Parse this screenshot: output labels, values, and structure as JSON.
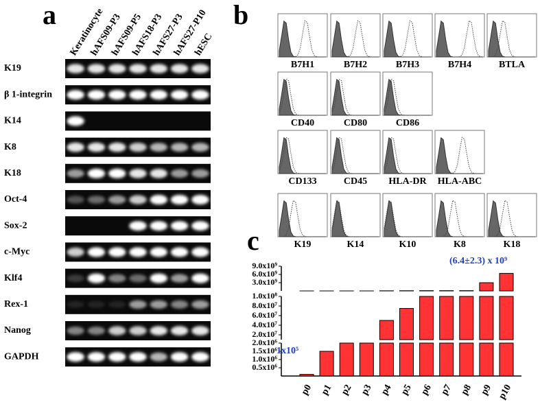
{
  "panel_a": {
    "letter": "a",
    "lanes": [
      "Keratinocyte",
      "hAFS09-P3",
      "hAFS09-P5",
      "hAFS18-P3",
      "hAFS27-P3",
      "hAFS27-P10",
      "hESC"
    ],
    "genes": [
      "K19",
      "β 1-integrin",
      "K14",
      "K8",
      "K18",
      "Oct-4",
      "Sox-2",
      "c-Myc",
      "Klf4",
      "Rex-1",
      "Nanog",
      "GAPDH"
    ]
  },
  "panel_b": {
    "letter": "b",
    "rows": [
      [
        "B7H1",
        "B7H2",
        "B7H3",
        "B7H4",
        "BTLA"
      ],
      [
        "CD40",
        "CD80",
        "CD86"
      ],
      [
        "CD133",
        "CD45",
        "HLA-DR",
        "HLA-ABC"
      ],
      [
        "K19",
        "K14",
        "K10",
        "K8",
        "K18"
      ]
    ]
  },
  "chart_data": {
    "type": "broken-bar",
    "letter": "c",
    "categories": [
      "p0",
      "p1",
      "p2",
      "p3",
      "p4",
      "p5",
      "p6",
      "p7",
      "p8",
      "p9",
      "p10"
    ],
    "values": [
      100000,
      1500000,
      5000000,
      5000000,
      50000000,
      75000000,
      100000000,
      100000000,
      100000000,
      3000000000,
      6400000000
    ],
    "color": "#ff3333",
    "segments": [
      {
        "ylim": [
          0,
          2000000
        ],
        "yticks": [
          {
            "value": 500000,
            "label": "0.5x10⁶"
          },
          {
            "value": 1000000,
            "label": "1.0x10⁶"
          },
          {
            "value": 1500000,
            "label": "1.5x10⁶"
          },
          {
            "value": 2000000,
            "label": "2.0x10⁶"
          }
        ]
      },
      {
        "ylim": [
          10000000,
          100000000
        ],
        "yticks": [
          {
            "value": 20000000,
            "label": "2.0x10⁷"
          },
          {
            "value": 40000000,
            "label": "4.0x10⁷"
          },
          {
            "value": 60000000,
            "label": "6.0x10⁷"
          },
          {
            "value": 80000000,
            "label": "8.0x10⁷"
          },
          {
            "value": 100000000,
            "label": "1.0x10⁸"
          }
        ]
      },
      {
        "ylim": [
          0,
          9000000000
        ],
        "yticks": [
          {
            "value": 3000000000,
            "label": "3.0x10⁹"
          },
          {
            "value": 6000000000,
            "label": "6.0x10⁹"
          },
          {
            "value": 9000000000,
            "label": "9.0x10⁹"
          }
        ]
      }
    ],
    "annotations": [
      "1x10⁵",
      "(6.4±2.3) x 10⁹"
    ]
  }
}
